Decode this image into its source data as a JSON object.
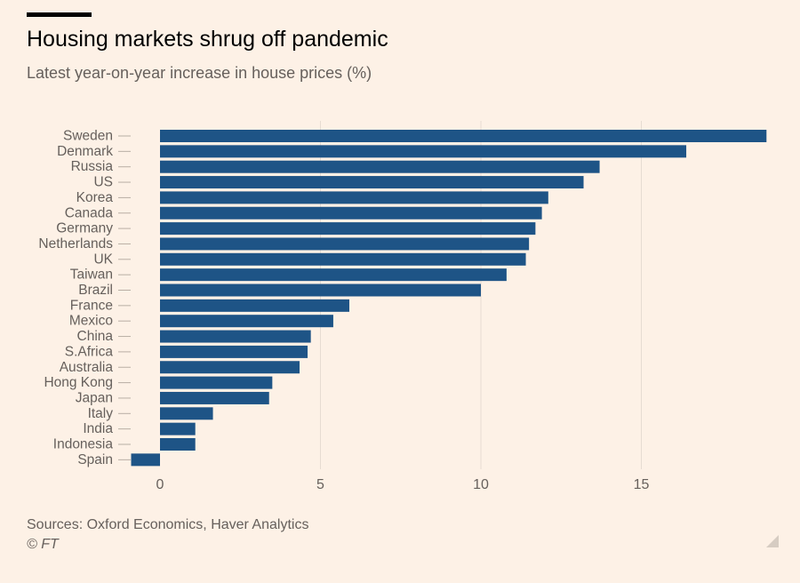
{
  "header": {
    "title": "Housing markets shrug off pandemic",
    "subtitle": "Latest year-on-year increase in house prices (%)"
  },
  "footer": {
    "source": "Sources: Oxford Economics, Haver Analytics",
    "copyright": "© FT"
  },
  "colors": {
    "bar": "#1e5486",
    "background": "#fdf1e6",
    "grid": "#e6dcd2",
    "text": "#66605c"
  },
  "chart_data": {
    "type": "bar",
    "orientation": "horizontal",
    "title": "Housing markets shrug off pandemic",
    "subtitle": "Latest year-on-year increase in house prices (%)",
    "xlabel": "",
    "ylabel": "",
    "xlim": [
      -0.9,
      19
    ],
    "xticks": [
      0,
      5,
      10,
      15
    ],
    "grid": true,
    "categories": [
      "Sweden",
      "Denmark",
      "Russia",
      "US",
      "Korea",
      "Canada",
      "Germany",
      "Netherlands",
      "UK",
      "Taiwan",
      "Brazil",
      "France",
      "Mexico",
      "China",
      "S.Africa",
      "Australia",
      "Hong Kong",
      "Japan",
      "Italy",
      "India",
      "Indonesia",
      "Spain"
    ],
    "values": [
      18.9,
      16.4,
      13.7,
      13.2,
      12.1,
      11.9,
      11.7,
      11.5,
      11.4,
      10.8,
      10.0,
      5.9,
      5.4,
      4.7,
      4.6,
      4.35,
      3.5,
      3.4,
      1.65,
      1.1,
      1.1,
      -0.9
    ]
  }
}
